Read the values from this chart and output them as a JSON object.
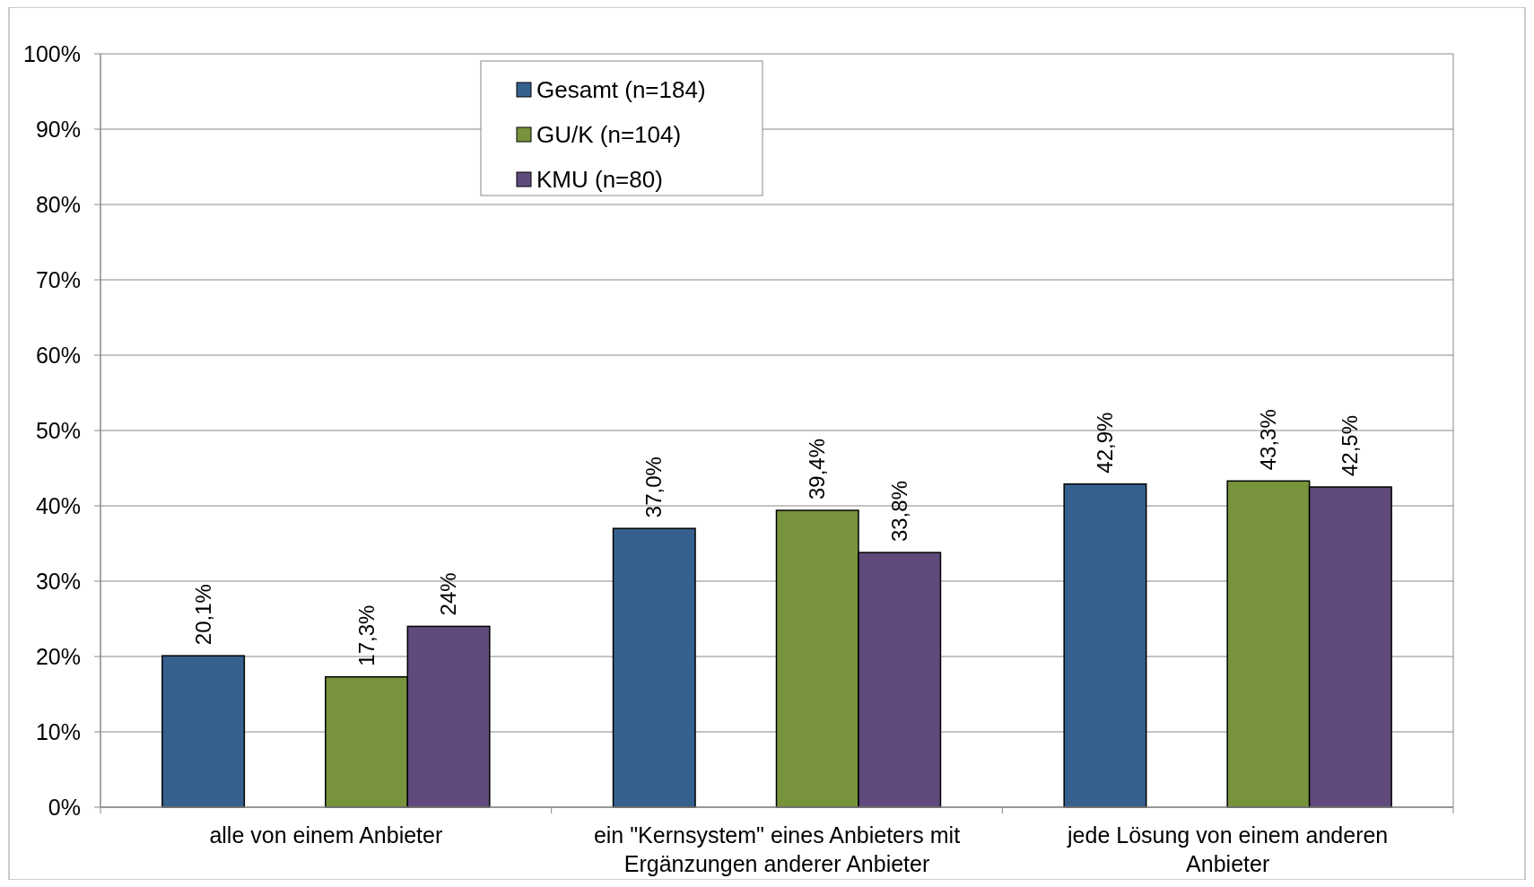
{
  "chart_data": {
    "type": "bar",
    "categories": [
      "alle von einem Anbieter",
      "ein \"Kernsystem\" eines Anbieters mit Ergänzungen anderer Anbieter",
      "jede Lösung von einem anderen Anbieter"
    ],
    "series": [
      {
        "name": "Gesamt (n=184)",
        "color": "#36618f",
        "values": [
          20.1,
          37.0,
          42.9
        ],
        "value_labels": [
          "20,1%",
          "37,0%",
          "42,9%"
        ]
      },
      {
        "name": "GU/K (n=104)",
        "color": "#77933c",
        "values": [
          17.3,
          39.4,
          43.3
        ],
        "value_labels": [
          "17,3%",
          "39,4%",
          "43,3%"
        ]
      },
      {
        "name": "KMU (n=80)",
        "color": "#604a7b",
        "values": [
          24,
          33.8,
          42.5
        ],
        "value_labels": [
          "24%",
          "33,8%",
          "42,5%"
        ]
      }
    ],
    "ylim": [
      0,
      100
    ],
    "yticks": [
      {
        "value": 0,
        "label": "0%"
      },
      {
        "value": 10,
        "label": "10%"
      },
      {
        "value": 20,
        "label": "20%"
      },
      {
        "value": 30,
        "label": "30%"
      },
      {
        "value": 40,
        "label": "40%"
      },
      {
        "value": 50,
        "label": "50%"
      },
      {
        "value": 60,
        "label": "60%"
      },
      {
        "value": 70,
        "label": "70%"
      },
      {
        "value": 80,
        "label": "80%"
      },
      {
        "value": 90,
        "label": "90%"
      },
      {
        "value": 100,
        "label": "100%"
      }
    ],
    "grid": "y",
    "legend": "top"
  }
}
